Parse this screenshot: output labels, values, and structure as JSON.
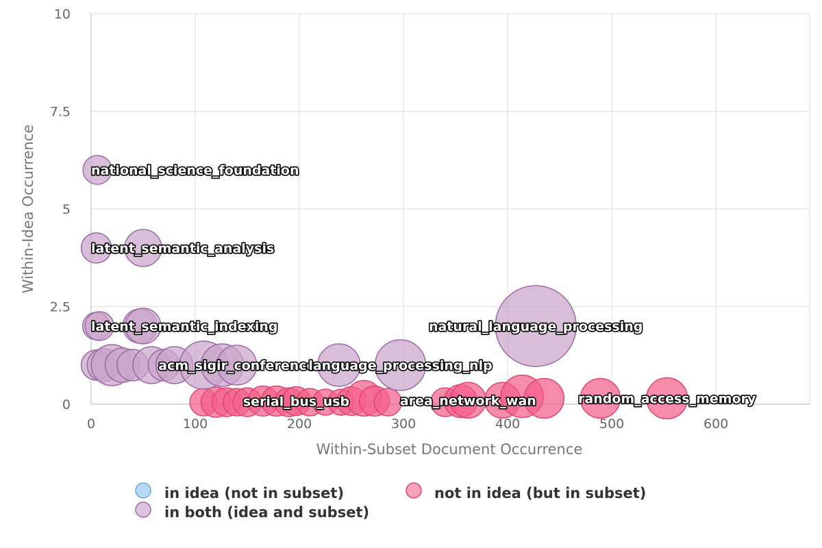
{
  "chart_data": {
    "type": "scatter",
    "xlabel": "Within-Subset Document Occurrence",
    "ylabel": "Within-Idea Occurrence",
    "xlim": [
      0,
      690
    ],
    "ylim": [
      0,
      10
    ],
    "x_ticks": [
      "0",
      "100",
      "200",
      "300",
      "400",
      "500",
      "600"
    ],
    "x_tick_values": [
      0,
      100,
      200,
      300,
      400,
      500,
      600
    ],
    "y_ticks": [
      "0",
      "2.5",
      "5",
      "7.5",
      "10"
    ],
    "y_tick_values": [
      0,
      2.5,
      5,
      7.5,
      10
    ],
    "grid": true,
    "legend_position": "bottom",
    "series": [
      {
        "name": "in idea (not in subset)",
        "color": "#8fc1ee",
        "stroke": "#6aa6dd",
        "points": []
      },
      {
        "name": "not in idea (but in subset)",
        "color": "#f2608a",
        "stroke": "#e0456f",
        "points": [
          {
            "x": 108,
            "y": 0.05,
            "size": 20
          },
          {
            "x": 120,
            "y": 0.05,
            "size": 22
          },
          {
            "x": 130,
            "y": 0.05,
            "size": 21
          },
          {
            "x": 140,
            "y": 0.05,
            "size": 20
          },
          {
            "x": 150,
            "y": 0.05,
            "size": 21
          },
          {
            "x": 165,
            "y": 0.08,
            "size": 22
          },
          {
            "x": 178,
            "y": 0.08,
            "size": 22
          },
          {
            "x": 190,
            "y": 0.05,
            "size": 21
          },
          {
            "x": 197,
            "y": 0.08,
            "size": 21,
            "label": "serial_bus_usb"
          },
          {
            "x": 210,
            "y": 0.05,
            "size": 20
          },
          {
            "x": 225,
            "y": 0.05,
            "size": 19
          },
          {
            "x": 240,
            "y": 0.05,
            "size": 19
          },
          {
            "x": 250,
            "y": 0.08,
            "size": 21
          },
          {
            "x": 262,
            "y": 0.15,
            "size": 26
          },
          {
            "x": 272,
            "y": 0.08,
            "size": 22
          },
          {
            "x": 285,
            "y": 0.05,
            "size": 20
          },
          {
            "x": 340,
            "y": 0.05,
            "size": 21
          },
          {
            "x": 355,
            "y": 0.08,
            "size": 24
          },
          {
            "x": 362,
            "y": 0.1,
            "size": 26,
            "label": "area_network_wan"
          },
          {
            "x": 395,
            "y": 0.1,
            "size": 26
          },
          {
            "x": 414,
            "y": 0.2,
            "size": 31
          },
          {
            "x": 435,
            "y": 0.15,
            "size": 29
          },
          {
            "x": 489,
            "y": 0.15,
            "size": 29
          },
          {
            "x": 553,
            "y": 0.15,
            "size": 30,
            "label": "random_access_memory"
          }
        ]
      },
      {
        "name": "in both (idea and subset)",
        "color": "#c9a5c9",
        "stroke": "#9b69a6",
        "points": [
          {
            "x": 6,
            "y": 6,
            "size": 21,
            "label": "national_science_foundation"
          },
          {
            "x": 5,
            "y": 4,
            "size": 22
          },
          {
            "x": 50,
            "y": 4,
            "size": 27,
            "label": "latent_semantic_analysis"
          },
          {
            "x": 5,
            "y": 2,
            "size": 20
          },
          {
            "x": 8,
            "y": 2,
            "size": 21
          },
          {
            "x": 47,
            "y": 2,
            "size": 25
          },
          {
            "x": 50,
            "y": 2,
            "size": 26,
            "label": "latent_semantic_indexing"
          },
          {
            "x": 5,
            "y": 1,
            "size": 22
          },
          {
            "x": 12,
            "y": 1,
            "size": 24
          },
          {
            "x": 20,
            "y": 1,
            "size": 30
          },
          {
            "x": 30,
            "y": 1,
            "size": 25
          },
          {
            "x": 40,
            "y": 1,
            "size": 23
          },
          {
            "x": 58,
            "y": 1,
            "size": 27
          },
          {
            "x": 70,
            "y": 1,
            "size": 23
          },
          {
            "x": 80,
            "y": 1,
            "size": 27
          },
          {
            "x": 108,
            "y": 1,
            "size": 35
          },
          {
            "x": 126,
            "y": 1,
            "size": 31
          },
          {
            "x": 140,
            "y": 1,
            "size": 29,
            "label": "acm_sigir_conference"
          },
          {
            "x": 238,
            "y": 1,
            "size": 31
          },
          {
            "x": 297,
            "y": 1,
            "size": 37,
            "label": "language_processing_nlp"
          },
          {
            "x": 427,
            "y": 2,
            "size": 59,
            "label": "natural_language_processing"
          }
        ]
      }
    ]
  }
}
